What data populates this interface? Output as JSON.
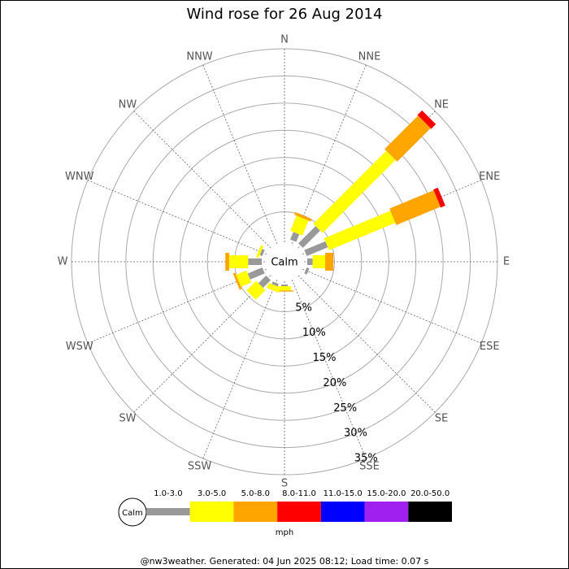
{
  "chart_data": {
    "type": "windrose",
    "title": "Wind rose for 26 Aug 2014",
    "categories": [
      "N",
      "NNE",
      "NE",
      "ENE",
      "E",
      "ESE",
      "SE",
      "SSE",
      "S",
      "SSW",
      "SW",
      "WSW",
      "W",
      "WNW",
      "NW",
      "NNW"
    ],
    "series": [
      {
        "name": "1.0-3.0",
        "color": "#999999",
        "values": [
          0,
          1.5,
          4.5,
          4.2,
          1,
          0.5,
          0,
          0,
          0.3,
          0.5,
          2,
          2.9,
          2.5,
          0.5,
          0,
          0
        ]
      },
      {
        "name": "3.0-5.0",
        "color": "#ffff00",
        "values": [
          0,
          3,
          19,
          13.2,
          2.3,
          0,
          0,
          0,
          0.8,
          1,
          2.5,
          2.1,
          3.5,
          0.5,
          0,
          0
        ]
      },
      {
        "name": "5.0-8.0",
        "color": "#ffa500",
        "values": [
          0,
          0.5,
          8.7,
          8.8,
          1.5,
          0,
          0,
          0,
          0.2,
          0,
          0,
          0.4,
          0.7,
          0,
          0,
          0
        ]
      },
      {
        "name": "8.0-11.0",
        "color": "#ff0000",
        "values": [
          0,
          0,
          1.2,
          0.9,
          0,
          0,
          0,
          0,
          0,
          0,
          0,
          0,
          0,
          0,
          0,
          0
        ]
      },
      {
        "name": "11.0-15.0",
        "color": "#0000ff",
        "values": [
          0,
          0,
          0,
          0,
          0,
          0,
          0,
          0,
          0,
          0,
          0,
          0,
          0,
          0,
          0,
          0
        ]
      },
      {
        "name": "15.0-20.0",
        "color": "#a020f0",
        "values": [
          0,
          0,
          0,
          0,
          0,
          0,
          0,
          0,
          0,
          0,
          0,
          0,
          0,
          0,
          0,
          0
        ]
      },
      {
        "name": "20.0-50.0",
        "color": "#000000",
        "values": [
          0,
          0,
          0,
          0,
          0,
          0,
          0,
          0,
          0,
          0,
          0,
          0,
          0,
          0,
          0,
          0
        ]
      }
    ],
    "rlim": [
      0,
      35
    ],
    "rticks": [
      {
        "value": 5,
        "label": "5%"
      },
      {
        "value": 10,
        "label": "10%"
      },
      {
        "value": 15,
        "label": "15%"
      },
      {
        "value": 20,
        "label": "20%"
      },
      {
        "value": 25,
        "label": "25%"
      },
      {
        "value": 30,
        "label": "30%"
      },
      {
        "value": 35,
        "label": "35%"
      }
    ],
    "calm_label": "Calm",
    "legend_calm": "Calm",
    "units": "mph",
    "footer": "@nw3weather. Generated: 04 Jun 2025 08:12; Load time: 0.07 s"
  }
}
